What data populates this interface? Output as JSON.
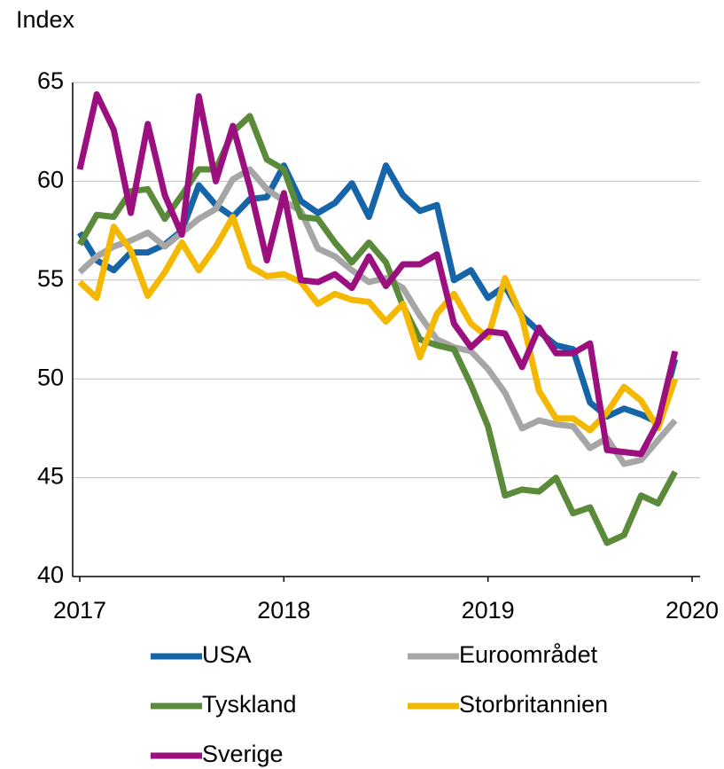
{
  "chart_data": {
    "type": "line",
    "y_label": "Index",
    "x": [
      2017,
      2017.0833,
      2017.1667,
      2017.25,
      2017.3333,
      2017.4167,
      2017.5,
      2017.5833,
      2017.6667,
      2017.75,
      2017.8333,
      2017.9167,
      2018,
      2018.0833,
      2018.1667,
      2018.25,
      2018.3333,
      2018.4167,
      2018.5,
      2018.5833,
      2018.6667,
      2018.75,
      2018.8333,
      2018.9167,
      2019,
      2019.0833,
      2019.1667,
      2019.25,
      2019.3333,
      2019.4167,
      2019.5,
      2019.5833,
      2019.6667,
      2019.75,
      2019.8333,
      2019.9167
    ],
    "xlim": [
      2017,
      2020
    ],
    "xticks": [
      2017,
      2018,
      2019,
      2020
    ],
    "ylim": [
      40,
      65
    ],
    "yticks": [
      40,
      45,
      50,
      55,
      60,
      65
    ],
    "grid": true,
    "series": [
      {
        "name": "USA",
        "color": "#1565a8",
        "values": [
          57.4,
          56.0,
          55.5,
          56.4,
          56.4,
          56.8,
          57.5,
          59.8,
          58.8,
          58.2,
          59.1,
          59.2,
          60.8,
          59.0,
          58.4,
          58.9,
          59.9,
          58.2,
          60.8,
          59.3,
          58.5,
          58.8,
          55.0,
          55.5,
          54.1,
          54.7,
          53.2,
          52.4,
          51.7,
          51.5,
          48.8,
          48.1,
          48.5,
          48.2,
          47.8,
          51.0
        ]
      },
      {
        "name": "Euroområdet",
        "color": "#a6a6a6",
        "values": [
          55.4,
          56.2,
          56.7,
          57.0,
          57.4,
          56.7,
          57.4,
          58.1,
          58.6,
          60.1,
          60.6,
          59.6,
          59.0,
          58.5,
          56.6,
          56.2,
          55.5,
          54.9,
          55.1,
          54.6,
          53.2,
          52.0,
          51.6,
          51.4,
          50.5,
          49.3,
          47.5,
          47.9,
          47.7,
          47.6,
          46.5,
          47.0,
          45.7,
          45.9,
          46.9,
          47.9
        ]
      },
      {
        "name": "Tyskland",
        "color": "#5b8b3a",
        "values": [
          56.8,
          58.3,
          58.2,
          59.5,
          59.6,
          58.1,
          59.3,
          60.6,
          60.6,
          62.5,
          63.3,
          61.1,
          60.6,
          58.2,
          58.1,
          56.9,
          55.9,
          56.9,
          55.9,
          53.7,
          52.0,
          51.7,
          51.5,
          49.7,
          47.6,
          44.1,
          44.4,
          44.3,
          45.0,
          43.2,
          43.5,
          41.7,
          42.1,
          44.1,
          43.7,
          45.3
        ]
      },
      {
        "name": "Storbritannien",
        "color": "#f5b800",
        "values": [
          54.9,
          54.1,
          57.7,
          56.5,
          54.2,
          55.4,
          56.9,
          55.5,
          56.7,
          58.2,
          55.7,
          55.2,
          55.3,
          54.9,
          53.8,
          54.3,
          54.0,
          53.9,
          52.9,
          53.8,
          51.1,
          53.3,
          54.3,
          52.8,
          52.1,
          55.1,
          53.1,
          49.4,
          48.0,
          48.0,
          47.4,
          48.3,
          49.6,
          48.9,
          47.5,
          50.0
        ]
      },
      {
        "name": "Sverige",
        "color": "#9b0f7f",
        "values": [
          60.6,
          64.4,
          62.6,
          58.4,
          62.9,
          59.3,
          57.3,
          64.3,
          60.0,
          62.8,
          59.7,
          56.0,
          59.4,
          55.0,
          54.9,
          55.3,
          54.6,
          56.2,
          54.7,
          55.8,
          55.8,
          56.3,
          52.8,
          51.6,
          52.4,
          52.3,
          50.6,
          52.6,
          51.3,
          51.3,
          51.8,
          46.4,
          46.3,
          46.2,
          47.8,
          51.4
        ]
      }
    ]
  }
}
